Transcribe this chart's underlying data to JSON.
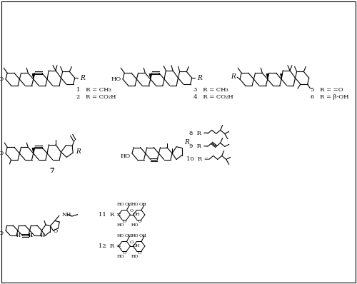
{
  "background_color": "#ffffff",
  "figsize": [
    5.0,
    3.98
  ],
  "dpi": 100,
  "border": true,
  "compounds": {
    "1_label": "1   R = CH₃",
    "2_label": "2   R = CO₂H",
    "3_label": "3   R = CH₃",
    "4_label": "4   R = CO₂H",
    "5_label": "5   R = =O",
    "6_label": "6   R = β-OH",
    "7_label": "7",
    "8_label": "8  R =",
    "9_label": "9  R =",
    "10_label": "10  R =",
    "11_label": "11  R =",
    "12_label": "12  R ="
  },
  "text_color": "#000000",
  "line_color": "#000000",
  "line_width": 0.8
}
